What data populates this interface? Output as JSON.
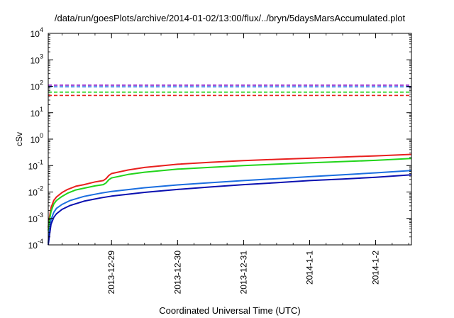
{
  "chart_data": {
    "type": "line",
    "title": "/data/run/goesPlots/archive/2014-01-02/13:00/flux/../bryn/5daysMarsAccumulated.plot",
    "xlabel": "Coordinated Universal Time (UTC)",
    "ylabel": "cSv",
    "x_is_date": true,
    "xlim": [
      "2013-12-28 01:00",
      "2014-01-02 13:00"
    ],
    "ylim": [
      0.0001,
      10000
    ],
    "yscale": "log",
    "grid": false,
    "legend": "none",
    "x_ticks": [
      {
        "x": "2013-12-29 00:00",
        "label": "2013-12-29"
      },
      {
        "x": "2013-12-30 00:00",
        "label": "2013-12-30"
      },
      {
        "x": "2013-12-31 00:00",
        "label": "2013-12-31"
      },
      {
        "x": "2014-01-01 00:00",
        "label": "2014-1-1"
      },
      {
        "x": "2014-01-02 00:00",
        "label": "2014-1-2"
      }
    ],
    "y_ticks": [
      {
        "value": 0.0001,
        "base": "10",
        "exp": "-4"
      },
      {
        "value": 0.001,
        "base": "10",
        "exp": "-3"
      },
      {
        "value": 0.01,
        "base": "10",
        "exp": "-2"
      },
      {
        "value": 0.1,
        "base": "10",
        "exp": "-1"
      },
      {
        "value": 1,
        "base": "10",
        "exp": "0"
      },
      {
        "value": 10,
        "base": "10",
        "exp": "1"
      },
      {
        "value": 100,
        "base": "10",
        "exp": "2"
      },
      {
        "value": 1000,
        "base": "10",
        "exp": "3"
      },
      {
        "value": 10000,
        "base": "10",
        "exp": "4"
      }
    ],
    "series": [
      {
        "color": "#e8201e",
        "dashed": true,
        "x": [
          "2013-12-28 01:00",
          "2014-01-02 13:00"
        ],
        "y": [
          45,
          45
        ]
      },
      {
        "color": "#22d41a",
        "dashed": true,
        "x": [
          "2013-12-28 01:00",
          "2014-01-02 13:00"
        ],
        "y": [
          60,
          60
        ]
      },
      {
        "color": "#1a6ee0",
        "dashed": true,
        "x": [
          "2013-12-28 01:00",
          "2014-01-02 13:00"
        ],
        "y": [
          95,
          95
        ]
      },
      {
        "color": "#8a10c8",
        "dashed": true,
        "x": [
          "2013-12-28 01:00",
          "2014-01-02 13:00"
        ],
        "y": [
          110,
          110
        ]
      },
      {
        "color": "#0a10b0",
        "dashed": false,
        "x": [
          "2014-01-02 12:00",
          "2014-01-02 13:00"
        ],
        "y": [
          95,
          95
        ]
      },
      {
        "color": "#e8201e",
        "dashed": false,
        "x": [
          "2013-12-28 01:00",
          "2013-12-28 01:30",
          "2013-12-28 02:00",
          "2013-12-28 03:00",
          "2013-12-28 04:00",
          "2013-12-28 06:00",
          "2013-12-28 08:00",
          "2013-12-28 11:00",
          "2013-12-28 14:00",
          "2013-12-28 18:00",
          "2013-12-28 21:00",
          "2013-12-28 22:00",
          "2013-12-28 23:00",
          "2013-12-29 00:00",
          "2013-12-29 06:00",
          "2013-12-29 12:00",
          "2013-12-30 00:00",
          "2013-12-30 12:00",
          "2013-12-31 00:00",
          "2013-12-31 12:00",
          "2014-01-01 00:00",
          "2014-01-01 12:00",
          "2014-01-02 00:00",
          "2014-01-02 13:00"
        ],
        "y": [
          0.00045,
          0.0012,
          0.0025,
          0.0048,
          0.0065,
          0.0095,
          0.0125,
          0.0165,
          0.019,
          0.024,
          0.027,
          0.032,
          0.042,
          0.05,
          0.068,
          0.085,
          0.112,
          0.133,
          0.155,
          0.172,
          0.19,
          0.21,
          0.232,
          0.265
        ]
      },
      {
        "color": "#22d41a",
        "dashed": false,
        "x": [
          "2013-12-28 01:00",
          "2013-12-28 01:30",
          "2013-12-28 02:00",
          "2013-12-28 03:00",
          "2013-12-28 04:00",
          "2013-12-28 06:00",
          "2013-12-28 08:00",
          "2013-12-28 11:00",
          "2013-12-28 14:00",
          "2013-12-28 18:00",
          "2013-12-28 21:00",
          "2013-12-28 22:00",
          "2013-12-28 23:00",
          "2013-12-29 00:00",
          "2013-12-29 06:00",
          "2013-12-29 12:00",
          "2013-12-30 00:00",
          "2013-12-30 12:00",
          "2013-12-31 00:00",
          "2013-12-31 12:00",
          "2014-01-01 00:00",
          "2014-01-01 12:00",
          "2014-01-02 00:00",
          "2014-01-02 13:00"
        ],
        "y": [
          0.00035,
          0.0009,
          0.0018,
          0.0035,
          0.0048,
          0.0068,
          0.009,
          0.012,
          0.014,
          0.017,
          0.019,
          0.022,
          0.029,
          0.034,
          0.046,
          0.056,
          0.073,
          0.086,
          0.1,
          0.113,
          0.127,
          0.142,
          0.158,
          0.185
        ]
      },
      {
        "color": "#1a6ee0",
        "dashed": false,
        "x": [
          "2013-12-28 01:00",
          "2013-12-28 01:30",
          "2013-12-28 02:00",
          "2013-12-28 03:00",
          "2013-12-28 04:00",
          "2013-12-28 06:00",
          "2013-12-28 09:00",
          "2013-12-28 14:00",
          "2013-12-28 20:00",
          "2013-12-29 00:00",
          "2013-12-29 12:00",
          "2013-12-30 00:00",
          "2013-12-30 12:00",
          "2013-12-31 00:00",
          "2013-12-31 12:00",
          "2014-01-01 00:00",
          "2014-01-01 12:00",
          "2014-01-02 00:00",
          "2014-01-02 13:00"
        ],
        "y": [
          0.00012,
          0.0004,
          0.0009,
          0.0017,
          0.0024,
          0.0034,
          0.0048,
          0.0068,
          0.009,
          0.0105,
          0.0145,
          0.0185,
          0.0225,
          0.027,
          0.032,
          0.038,
          0.045,
          0.053,
          0.065
        ]
      },
      {
        "color": "#0a10b0",
        "dashed": false,
        "x": [
          "2013-12-28 01:00",
          "2013-12-28 01:30",
          "2013-12-28 02:00",
          "2013-12-28 03:00",
          "2013-12-28 04:00",
          "2013-12-28 06:00",
          "2013-12-28 09:00",
          "2013-12-28 14:00",
          "2013-12-28 20:00",
          "2013-12-29 00:00",
          "2013-12-29 12:00",
          "2013-12-30 00:00",
          "2013-12-30 12:00",
          "2013-12-31 00:00",
          "2013-12-31 12:00",
          "2014-01-01 00:00",
          "2014-01-01 12:00",
          "2014-01-02 00:00",
          "2014-01-02 13:00"
        ],
        "y": [
          0.0001,
          0.00025,
          0.0006,
          0.0011,
          0.0015,
          0.0022,
          0.0031,
          0.0045,
          0.006,
          0.007,
          0.0097,
          0.0125,
          0.0155,
          0.019,
          0.0225,
          0.027,
          0.031,
          0.036,
          0.045
        ]
      }
    ]
  }
}
